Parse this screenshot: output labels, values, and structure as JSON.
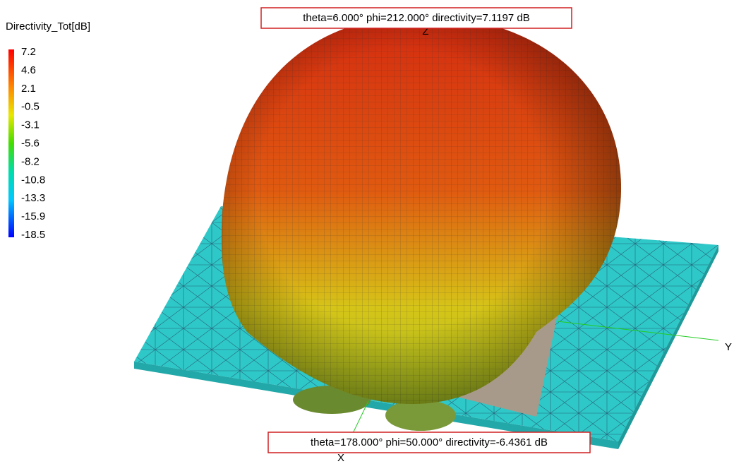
{
  "legend": {
    "title": "Directivity_Tot[dB]",
    "labels": [
      "7.2",
      "4.6",
      "2.1",
      "-0.5",
      "-3.1",
      "-5.6",
      "-8.2",
      "-10.8",
      "-13.3",
      "-15.9",
      "-18.5"
    ]
  },
  "annotations": {
    "top": "theta=6.000° phi=212.000° directivity=7.1197 dB",
    "bottom": "theta=178.000° phi=50.000° directivity=-6.4361 dB"
  },
  "axes": {
    "z": "Z",
    "y": "Y",
    "x": "X"
  }
}
